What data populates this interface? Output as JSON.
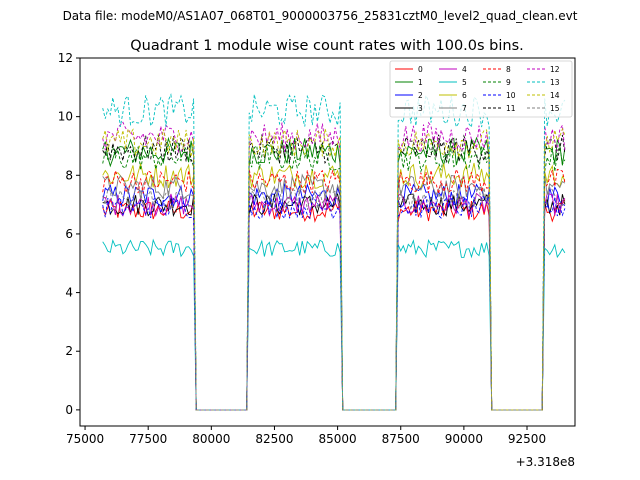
{
  "chart_data": {
    "type": "line",
    "suptitle": "Data file: modeM0/AS1A07_068T01_9000003756_25831cztM0_level2_quad_clean.evt",
    "title": "Quadrant 1 module wise count rates with 100.0s bins.",
    "xlabel": "",
    "ylabel": "",
    "x_offset_label": "+3.318e8",
    "xlim": [
      74800,
      94400
    ],
    "ylim": [
      -0.55,
      12.0
    ],
    "xticks": [
      75000,
      77500,
      80000,
      82500,
      85000,
      87500,
      90000,
      92500
    ],
    "xtick_labels": [
      "75000",
      "77500",
      "80000",
      "82500",
      "85000",
      "87500",
      "90000",
      "92500"
    ],
    "yticks": [
      0,
      2,
      4,
      6,
      8,
      10,
      12
    ],
    "ytick_labels": [
      "0",
      "2",
      "4",
      "6",
      "8",
      "10",
      "12"
    ],
    "legend_position": "top-right",
    "on_segments": [
      [
        75700,
        79300
      ],
      [
        81500,
        85100
      ],
      [
        87400,
        91000
      ],
      [
        93200,
        94000
      ]
    ],
    "off_segments": [
      [
        79400,
        81400
      ],
      [
        85200,
        87300
      ],
      [
        91100,
        93100
      ]
    ],
    "bin": 100,
    "series": [
      {
        "name": "0",
        "color": "#ff0000",
        "dash": false,
        "mean": 6.8
      },
      {
        "name": "1",
        "color": "#008000",
        "dash": false,
        "mean": 8.8
      },
      {
        "name": "2",
        "color": "#0000ff",
        "dash": false,
        "mean": 7.3
      },
      {
        "name": "3",
        "color": "#000000",
        "dash": false,
        "mean": 7.0
      },
      {
        "name": "4",
        "color": "#bf00bf",
        "dash": false,
        "mean": 7.0
      },
      {
        "name": "5",
        "color": "#00bfbf",
        "dash": false,
        "mean": 5.5
      },
      {
        "name": "6",
        "color": "#bfbf00",
        "dash": false,
        "mean": 8.0
      },
      {
        "name": "7",
        "color": "#808080",
        "dash": false,
        "mean": 7.6
      },
      {
        "name": "8",
        "color": "#ff0000",
        "dash": true,
        "mean": 7.8
      },
      {
        "name": "9",
        "color": "#008000",
        "dash": true,
        "mean": 8.6
      },
      {
        "name": "10",
        "color": "#0000ff",
        "dash": true,
        "mean": 6.9
      },
      {
        "name": "11",
        "color": "#000000",
        "dash": true,
        "mean": 8.9
      },
      {
        "name": "12",
        "color": "#bf00bf",
        "dash": true,
        "mean": 9.3
      },
      {
        "name": "13",
        "color": "#00bfbf",
        "dash": true,
        "mean": 10.2
      },
      {
        "name": "14",
        "color": "#bfbf00",
        "dash": true,
        "mean": 9.1
      },
      {
        "name": "15",
        "color": "#808080",
        "dash": true,
        "mean": 7.2
      }
    ]
  }
}
